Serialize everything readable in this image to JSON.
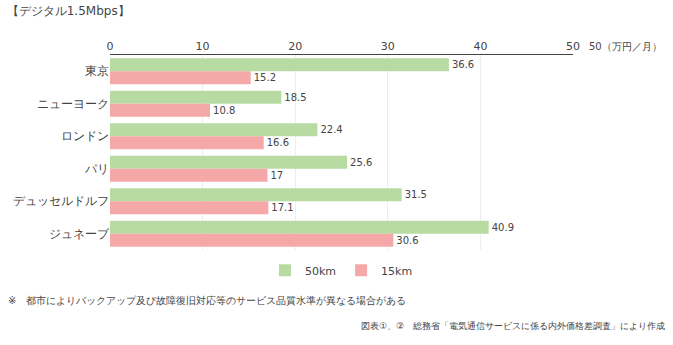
{
  "chart_data": {
    "type": "bar",
    "orientation": "horizontal",
    "title": "【デジタル1.5Mbps】",
    "xlabel": "50（万円／月）",
    "categories": [
      "東京",
      "ニューヨーク",
      "ロンドン",
      "パリ",
      "デュッセルドルフ",
      "ジュネーブ"
    ],
    "series": [
      {
        "name": "50km",
        "color": "#b8dba4",
        "values": [
          36.6,
          18.5,
          22.4,
          25.6,
          31.5,
          40.9
        ]
      },
      {
        "name": "15km",
        "color": "#f5a8a8",
        "values": [
          15.2,
          10.8,
          16.6,
          17.0,
          17.1,
          30.6
        ]
      }
    ],
    "xlim": [
      0,
      50
    ],
    "xticks": [
      0,
      10,
      20,
      30,
      40,
      50
    ],
    "grid": true,
    "data_labels": true,
    "legend": "bottom",
    "annotations": [
      "※　都市によりバックアップ及び故障復旧対応等のサービス品質水準が異なる場合がある",
      "図表①、②　総務省「電気通信サービスに係る内外価格差調査」により作成"
    ]
  }
}
